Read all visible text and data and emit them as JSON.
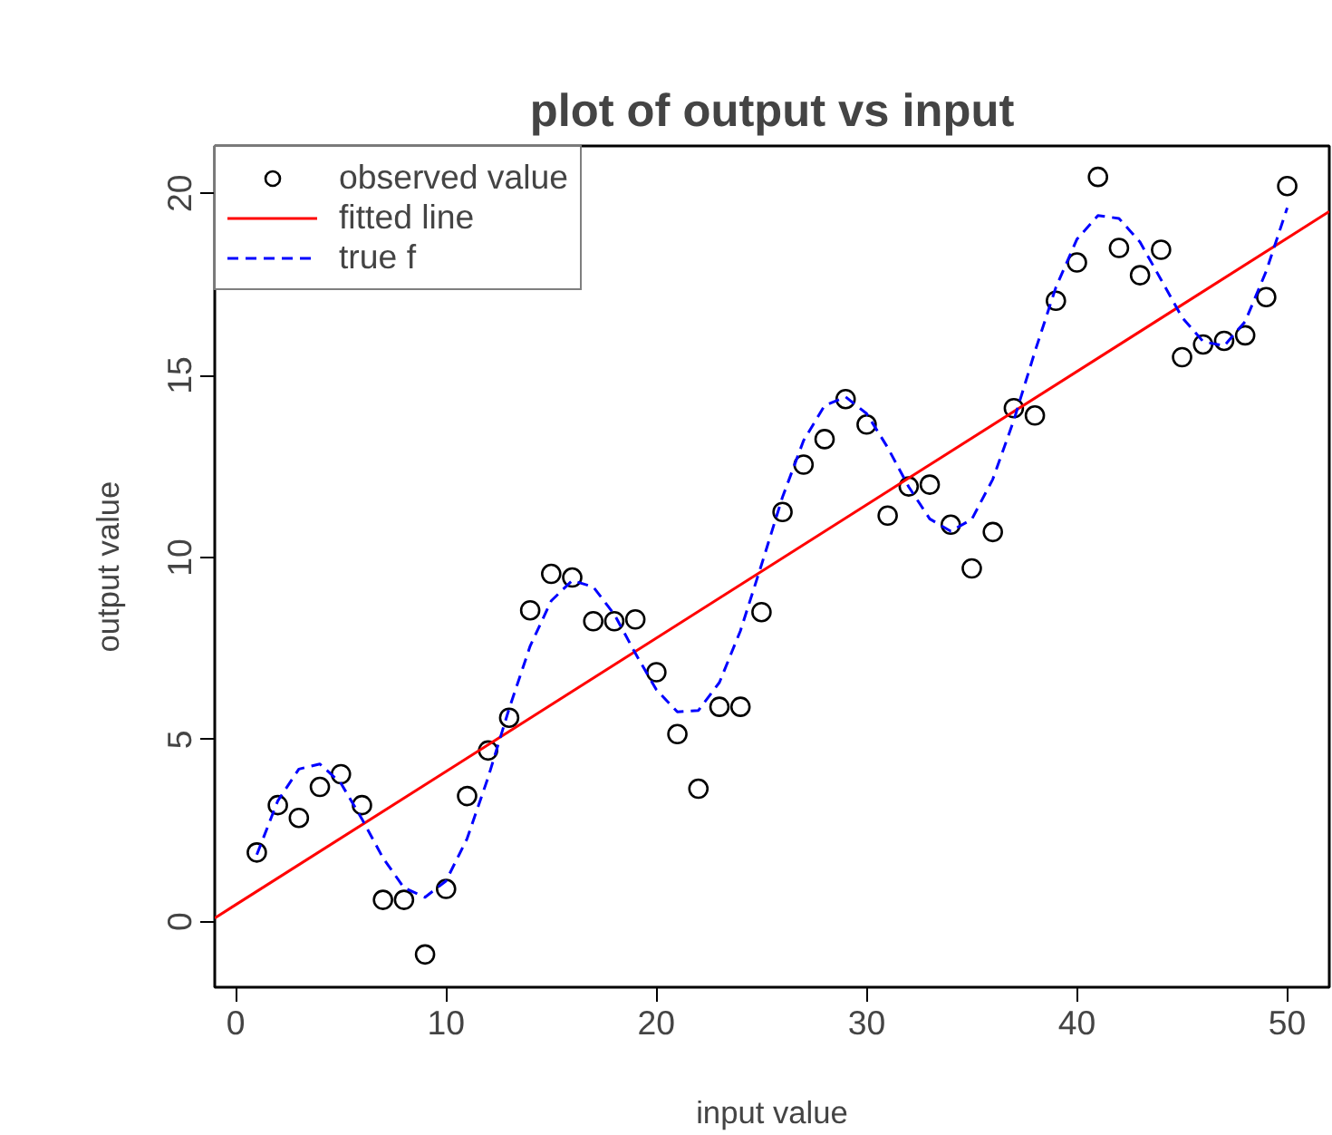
{
  "chart_data": {
    "type": "scatter",
    "title": "plot of output vs input",
    "xlabel": "input value",
    "ylabel": "output value",
    "xlim": [
      -1,
      52
    ],
    "ylim": [
      -1.8,
      21.3
    ],
    "xticks": [
      0,
      10,
      20,
      30,
      40,
      50
    ],
    "yticks": [
      0,
      5,
      10,
      15,
      20
    ],
    "grid": false,
    "legend": "top left",
    "series": [
      {
        "name": "observed value",
        "marker": "circle",
        "color": "#000000",
        "x": [
          1,
          2,
          3,
          4,
          5,
          6,
          7,
          8,
          9,
          10,
          11,
          12,
          13,
          14,
          15,
          16,
          17,
          18,
          19,
          20,
          21,
          22,
          23,
          24,
          25,
          26,
          27,
          28,
          29,
          30,
          31,
          32,
          33,
          34,
          35,
          36,
          37,
          38,
          39,
          40,
          41,
          42,
          43,
          44,
          45,
          46,
          47,
          48,
          49,
          50
        ],
        "values": [
          1.9,
          3.2,
          2.85,
          3.7,
          4.05,
          3.2,
          0.6,
          0.6,
          -0.9,
          0.9,
          3.45,
          4.7,
          5.6,
          8.55,
          9.55,
          9.45,
          8.25,
          8.25,
          8.3,
          6.85,
          5.15,
          3.65,
          5.9,
          5.9,
          8.5,
          11.25,
          12.55,
          13.25,
          14.35,
          13.65,
          11.15,
          11.95,
          12.0,
          10.9,
          9.7,
          10.7,
          14.1,
          13.9,
          17.05,
          18.1,
          20.45,
          18.5,
          17.75,
          18.45,
          15.5,
          15.85,
          15.95,
          16.1,
          17.15,
          20.2
        ]
      },
      {
        "name": "fitted line",
        "type": "line",
        "color": "#ff0000",
        "line_style": "solid",
        "x": [
          -1,
          52
        ],
        "values": [
          0.1,
          19.5
        ]
      },
      {
        "name": "true f",
        "type": "line",
        "color": "#0000ff",
        "line_style": "dashed",
        "x": [
          1,
          2,
          3,
          4,
          5,
          6,
          7,
          8,
          9,
          10,
          11,
          12,
          13,
          14,
          15,
          16,
          17,
          18,
          19,
          20,
          21,
          22,
          23,
          24,
          25,
          26,
          27,
          28,
          29,
          30,
          31,
          32,
          33,
          34,
          35,
          36,
          37,
          38,
          39,
          40,
          41,
          42,
          43,
          44,
          45,
          46,
          47,
          48,
          49,
          50
        ],
        "values": [
          1.84,
          3.32,
          4.19,
          4.33,
          3.8,
          2.82,
          1.75,
          0.93,
          0.67,
          1.12,
          2.28,
          3.96,
          5.85,
          7.57,
          8.81,
          9.37,
          9.19,
          8.44,
          7.37,
          6.37,
          5.76,
          5.8,
          6.57,
          7.99,
          9.8,
          11.66,
          13.21,
          14.17,
          14.41,
          13.95,
          13.02,
          11.94,
          11.06,
          10.72,
          11.05,
          12.15,
          13.77,
          15.65,
          17.42,
          18.74,
          19.39,
          19.31,
          18.66,
          17.63,
          16.59,
          15.93,
          15.81,
          16.48,
          17.86,
          19.6
        ]
      }
    ]
  }
}
